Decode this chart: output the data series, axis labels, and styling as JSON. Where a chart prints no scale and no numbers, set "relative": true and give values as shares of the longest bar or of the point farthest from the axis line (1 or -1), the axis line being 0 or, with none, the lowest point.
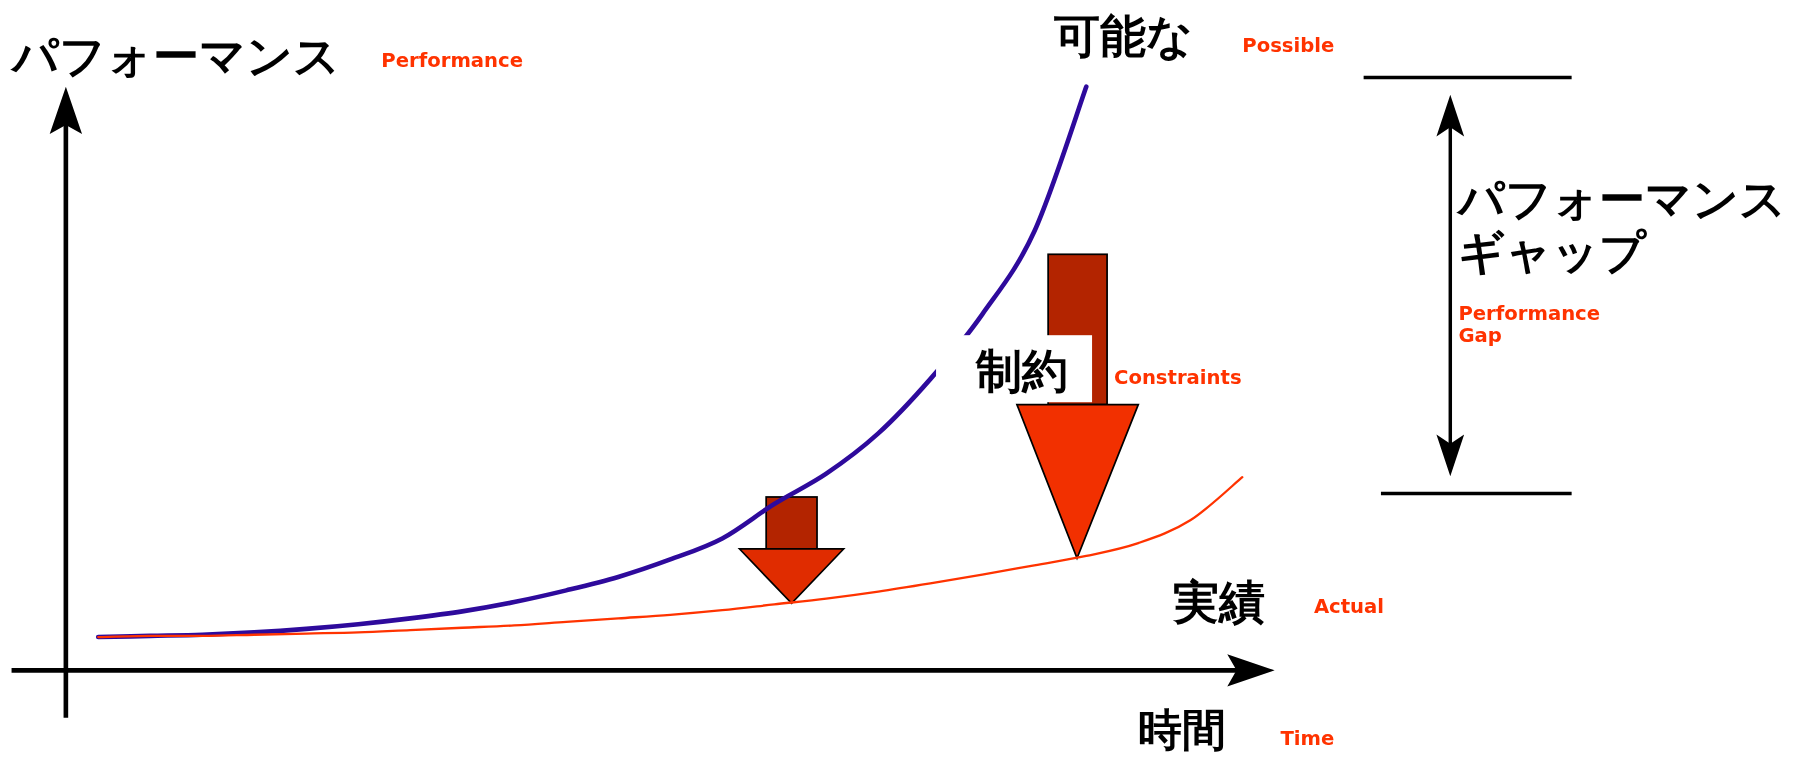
{
  "chart_data": {
    "type": "line",
    "relative": true,
    "ylabel": "パフォーマンス",
    "xlabel": "時間",
    "categories": [
      null,
      null,
      null,
      null,
      null,
      null,
      null,
      null,
      null,
      null,
      null,
      null,
      null,
      null,
      null,
      null,
      null,
      null,
      null,
      null,
      null,
      null,
      null
    ],
    "series": [
      {
        "name": "可能な",
        "color": "#2e0a9c",
        "values": [
          0.057,
          0.059,
          0.061,
          0.065,
          0.071,
          0.079,
          0.089,
          0.101,
          0.117,
          0.137,
          0.16,
          0.19,
          0.226,
          0.285,
          0.337,
          0.406,
          0.499,
          0.61,
          0.752,
          1,
          null,
          null,
          null
        ]
      },
      {
        "name": "実績",
        "color": "#ff3300",
        "values": [
          0.057,
          0.059,
          0.059,
          0.061,
          0.063,
          0.065,
          0.069,
          0.073,
          0.077,
          0.083,
          0.089,
          0.095,
          0.103,
          0.113,
          0.123,
          0.135,
          0.149,
          0.164,
          0.18,
          0.196,
          0.218,
          0.257,
          0.331
        ]
      }
    ],
    "annotations": [
      "Performance",
      "Possible",
      "Actual",
      "Time",
      "制約",
      "Constraints",
      "パフォーマンスギャップ",
      "Performance Gap"
    ]
  }
}
